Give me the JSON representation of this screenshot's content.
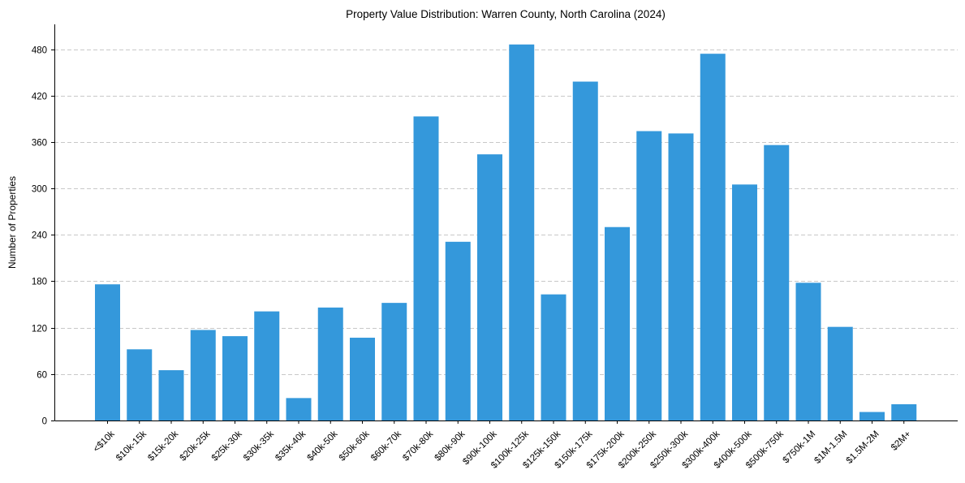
{
  "chart_data": {
    "type": "bar",
    "title": "Property Value Distribution: Warren County, North Carolina (2024)",
    "xlabel": "",
    "ylabel": "Number of Properties",
    "ylim": [
      0,
      512
    ],
    "yticks": [
      0,
      60,
      120,
      180,
      240,
      300,
      360,
      420,
      480
    ],
    "grid": "y",
    "bar_color": "#3498db",
    "categories": [
      "<$10k",
      "$10k-15k",
      "$15k-20k",
      "$20k-25k",
      "$25k-30k",
      "$30k-35k",
      "$35k-40k",
      "$40k-50k",
      "$50k-60k",
      "$60k-70k",
      "$70k-80k",
      "$80k-90k",
      "$90k-100k",
      "$100k-125k",
      "$125k-150k",
      "$150k-175k",
      "$175k-200k",
      "$200k-250k",
      "$250k-300k",
      "$300k-400k",
      "$400k-500k",
      "$500k-750k",
      "$750k-1M",
      "$1M-1.5M",
      "$1.5M-2M",
      "$2M+"
    ],
    "values": [
      176,
      92,
      65,
      117,
      109,
      141,
      29,
      146,
      107,
      152,
      393,
      231,
      344,
      486,
      163,
      438,
      250,
      374,
      371,
      474,
      305,
      356,
      178,
      121,
      11,
      21
    ]
  }
}
